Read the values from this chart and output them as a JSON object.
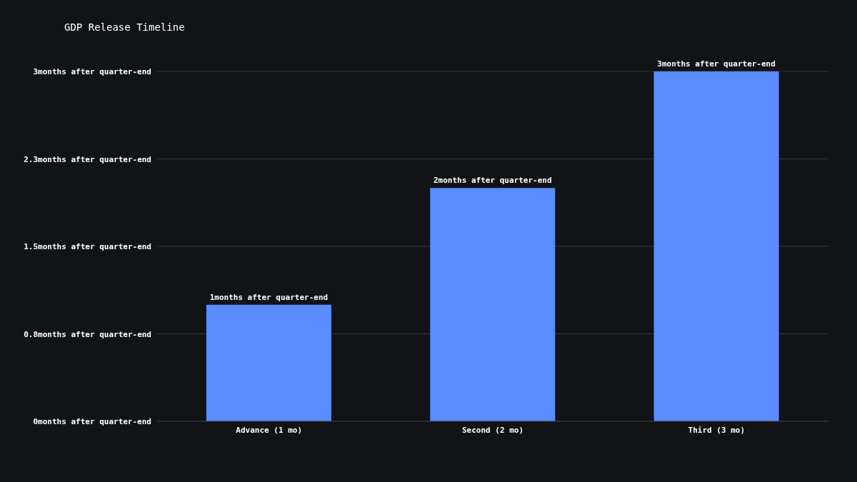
{
  "chart_data": {
    "type": "bar",
    "title": "GDP Release Timeline",
    "categories": [
      "Advance (1 mo)",
      "Second (2 mo)",
      "Third (3 mo)"
    ],
    "values": [
      1,
      2,
      3
    ],
    "color": "#5b8cff",
    "value_labels": [
      "1months after quarter-end",
      "2months after quarter-end",
      "3months after quarter-end"
    ],
    "ylim": [
      0,
      3
    ],
    "yticks": [
      {
        "value": 0,
        "label": "0months after quarter-end"
      },
      {
        "value": 0.75,
        "label": "0.8months after quarter-end"
      },
      {
        "value": 1.5,
        "label": "1.5months after quarter-end"
      },
      {
        "value": 2.25,
        "label": "2.3months after quarter-end"
      },
      {
        "value": 3,
        "label": "3months after quarter-end"
      }
    ],
    "grid": "y",
    "legend": false
  }
}
